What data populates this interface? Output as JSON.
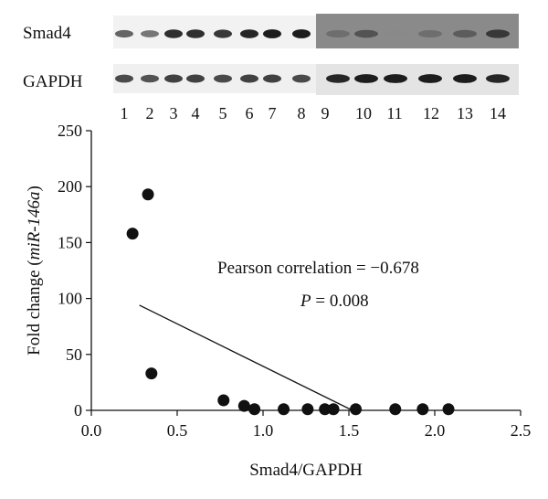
{
  "blot": {
    "rows": [
      {
        "label": "Smad4",
        "intensities_left": [
          0.55,
          0.45,
          0.85,
          0.85,
          0.8,
          0.9,
          0.95,
          0.95
        ],
        "intensities_right": [
          0.5,
          0.65,
          0.35,
          0.5,
          0.6,
          0.8
        ]
      },
      {
        "label": "GAPDH",
        "intensities_left": [
          0.7,
          0.65,
          0.75,
          0.75,
          0.7,
          0.75,
          0.75,
          0.7
        ],
        "intensities_right": [
          0.9,
          0.95,
          0.95,
          0.95,
          0.95,
          0.9
        ]
      }
    ],
    "lanes": [
      "1",
      "2",
      "3",
      "4",
      "5",
      "6",
      "7",
      "8",
      "9",
      "10",
      "11",
      "12",
      "13",
      "14"
    ]
  },
  "chart_data": {
    "type": "scatter",
    "xlabel": "Smad4/GAPDH",
    "ylabel_prefix": "Fold change (",
    "ylabel_italic": "miR-146a",
    "ylabel_suffix": ")",
    "xlim": [
      0.0,
      2.5
    ],
    "ylim": [
      0,
      250
    ],
    "xticks": [
      0.0,
      0.5,
      1.0,
      1.5,
      2.0,
      2.5
    ],
    "xtick_labels": [
      "0.0",
      "0.5",
      "1.0",
      "1.5",
      "2.0",
      "2.5"
    ],
    "yticks": [
      0,
      50,
      100,
      150,
      200,
      250
    ],
    "ytick_labels": [
      "0",
      "50",
      "100",
      "150",
      "200",
      "250"
    ],
    "points": [
      {
        "x": 0.24,
        "y": 158
      },
      {
        "x": 0.33,
        "y": 193
      },
      {
        "x": 0.35,
        "y": 33
      },
      {
        "x": 0.77,
        "y": 9
      },
      {
        "x": 0.89,
        "y": 4
      },
      {
        "x": 0.95,
        "y": 1
      },
      {
        "x": 1.12,
        "y": 1
      },
      {
        "x": 1.26,
        "y": 1
      },
      {
        "x": 1.36,
        "y": 1
      },
      {
        "x": 1.41,
        "y": 1
      },
      {
        "x": 1.54,
        "y": 1
      },
      {
        "x": 1.77,
        "y": 1
      },
      {
        "x": 1.93,
        "y": 1
      },
      {
        "x": 2.08,
        "y": 1
      }
    ],
    "trendline": [
      {
        "x": 0.28,
        "y": 94
      },
      {
        "x": 1.52,
        "y": 0
      }
    ],
    "annotation": {
      "correlation": "Pearson correlation = −0.678",
      "p_label": "P",
      "p_value": " = 0.008"
    }
  }
}
